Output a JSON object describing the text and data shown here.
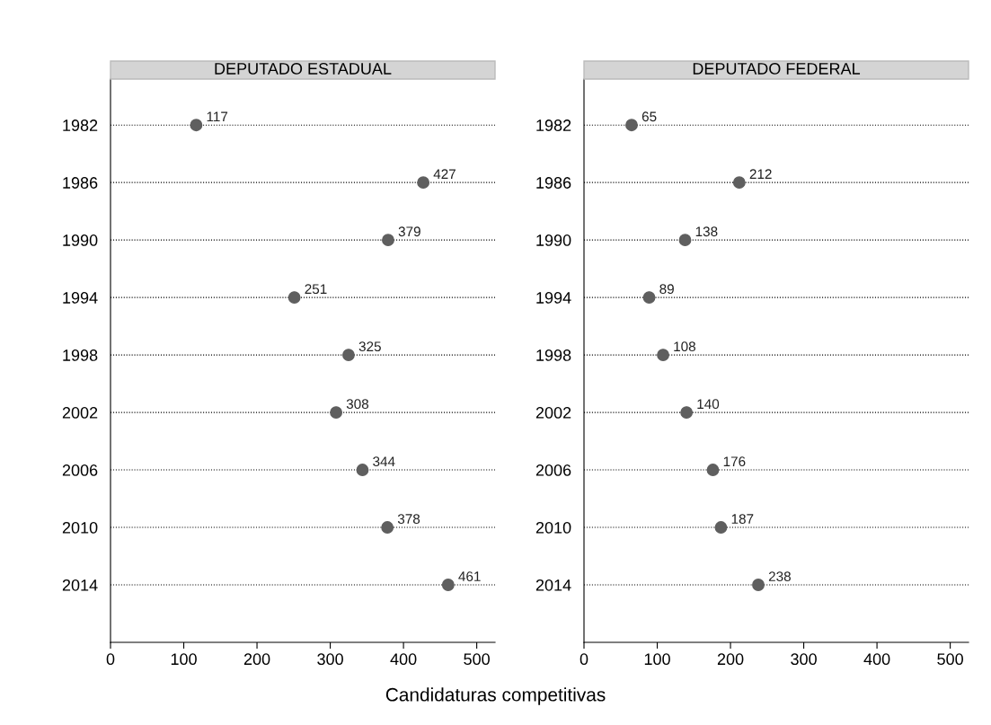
{
  "chart_data": [
    {
      "type": "scatter",
      "title": "DEPUTADO ESTADUAL",
      "xlabel": "Candidaturas competitivas",
      "orientation": "horizontal",
      "categories": [
        "1982",
        "1986",
        "1990",
        "1994",
        "1998",
        "2002",
        "2006",
        "2010",
        "2014"
      ],
      "values": [
        117,
        427,
        379,
        251,
        325,
        308,
        344,
        378,
        461
      ],
      "color": "#5f5f5f",
      "data_labels": true,
      "marker": "circle",
      "grid": "y",
      "line_style": "dotted",
      "xlim": [
        0,
        525
      ],
      "xticks": [
        0,
        100,
        200,
        300,
        400,
        500
      ]
    },
    {
      "type": "scatter",
      "title": "DEPUTADO FEDERAL",
      "orientation": "horizontal",
      "categories": [
        "1982",
        "1986",
        "1990",
        "1994",
        "1998",
        "2002",
        "2006",
        "2010",
        "2014"
      ],
      "values": [
        65,
        212,
        138,
        89,
        108,
        140,
        176,
        187,
        238
      ],
      "color": "#5f5f5f",
      "data_labels": true,
      "marker": "circle",
      "grid": "y",
      "line_style": "dotted",
      "xlim": [
        0,
        525
      ],
      "xticks": [
        0,
        100,
        200,
        300,
        400,
        500
      ]
    }
  ]
}
